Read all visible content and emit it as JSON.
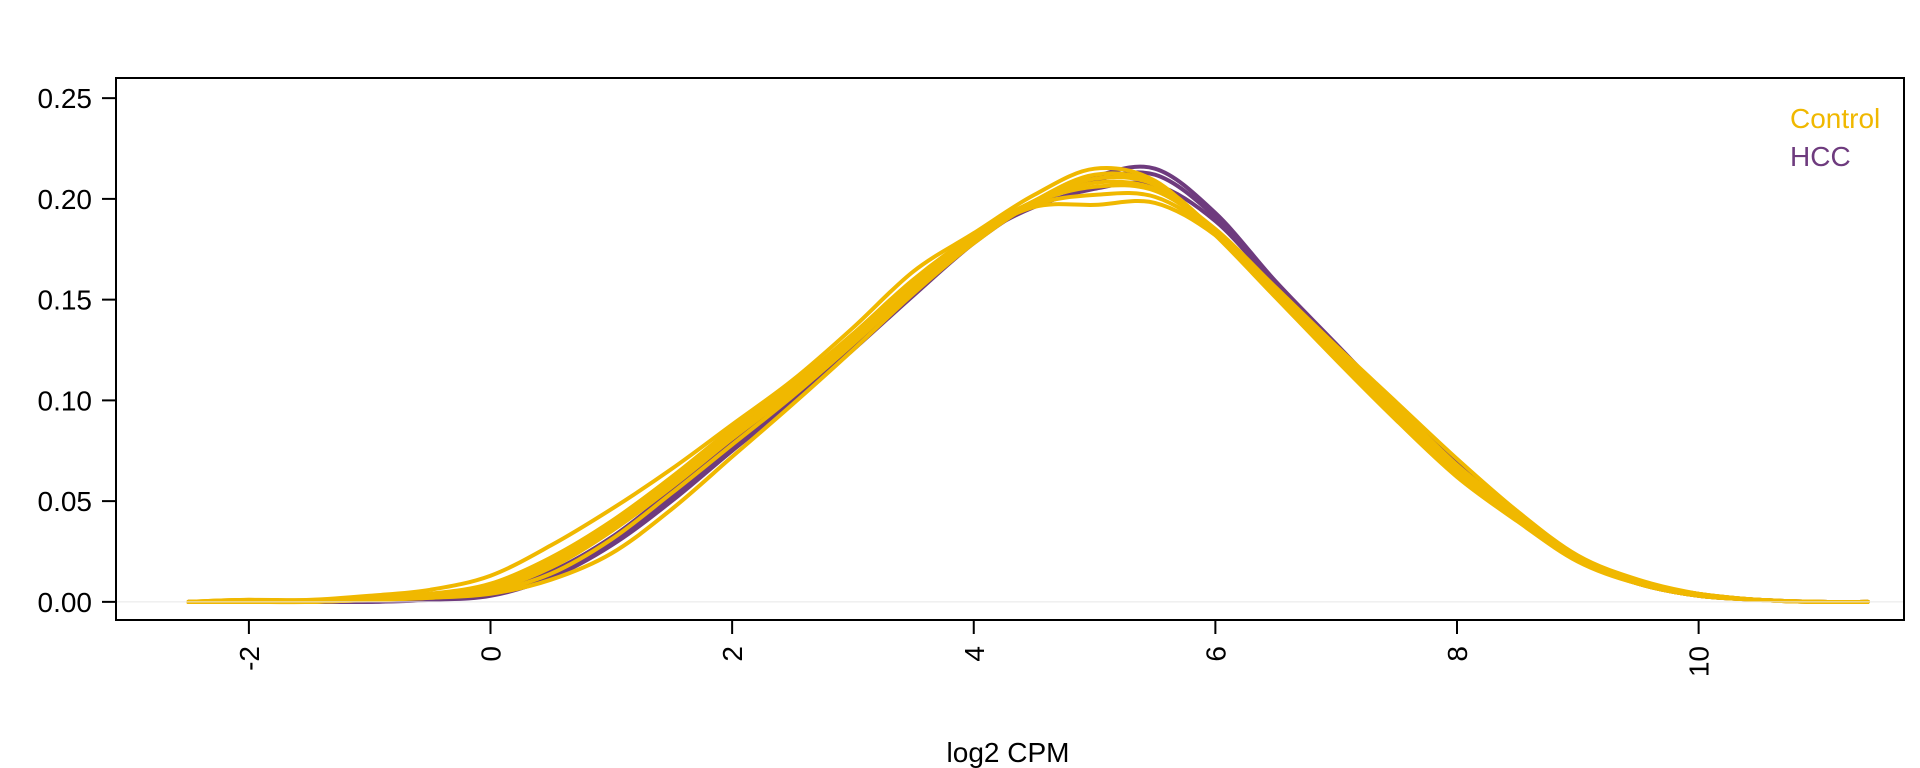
{
  "chart_data": {
    "type": "line",
    "title": "",
    "xlabel": "log2 CPM",
    "ylabel": "",
    "xlim": [
      -3.1,
      11.7
    ],
    "ylim": [
      -0.009,
      0.26
    ],
    "x_ticks": [
      "-2",
      "0",
      "2",
      "4",
      "6",
      "8",
      "10"
    ],
    "y_ticks": [
      "0.00",
      "0.05",
      "0.10",
      "0.15",
      "0.20",
      "0.25"
    ],
    "grid": false,
    "legend_position": "top-right",
    "colors": {
      "Control": "#F0B800",
      "HCC": "#6E3B7E"
    },
    "legend": [
      {
        "label": "Control",
        "color": "#F0B800"
      },
      {
        "label": "HCC",
        "color": "#6E3B7E"
      }
    ],
    "x": [
      -2.5,
      -2.0,
      -1.5,
      -1.0,
      -0.5,
      0.0,
      0.5,
      1.0,
      1.5,
      2.0,
      2.5,
      3.0,
      3.5,
      4.0,
      4.5,
      5.0,
      5.5,
      6.0,
      6.5,
      7.0,
      7.5,
      8.0,
      8.5,
      9.0,
      9.5,
      10.0,
      10.5,
      11.0,
      11.4
    ],
    "series": [
      {
        "group": "HCC",
        "values": [
          0.0,
          0.0,
          0.0,
          0.0,
          0.001,
          0.003,
          0.012,
          0.028,
          0.05,
          0.075,
          0.099,
          0.125,
          0.152,
          0.178,
          0.198,
          0.211,
          0.215,
          0.193,
          0.159,
          0.128,
          0.097,
          0.068,
          0.042,
          0.021,
          0.009,
          0.003,
          0.001,
          0.0,
          0.0
        ]
      },
      {
        "group": "HCC",
        "values": [
          0.0,
          0.0,
          0.0,
          0.001,
          0.002,
          0.005,
          0.015,
          0.032,
          0.055,
          0.079,
          0.103,
          0.129,
          0.156,
          0.18,
          0.196,
          0.205,
          0.207,
          0.189,
          0.157,
          0.127,
          0.098,
          0.069,
          0.043,
          0.022,
          0.01,
          0.004,
          0.001,
          0.0,
          0.0
        ]
      },
      {
        "group": "HCC",
        "values": [
          0.0,
          0.0,
          0.0,
          0.0,
          0.001,
          0.004,
          0.013,
          0.03,
          0.052,
          0.076,
          0.101,
          0.127,
          0.154,
          0.179,
          0.197,
          0.209,
          0.212,
          0.191,
          0.158,
          0.127,
          0.096,
          0.068,
          0.042,
          0.021,
          0.009,
          0.003,
          0.001,
          0.0,
          0.0
        ]
      },
      {
        "group": "Control",
        "values": [
          0.0,
          0.001,
          0.001,
          0.003,
          0.006,
          0.013,
          0.028,
          0.046,
          0.066,
          0.088,
          0.11,
          0.136,
          0.164,
          0.183,
          0.202,
          0.215,
          0.209,
          0.182,
          0.151,
          0.12,
          0.09,
          0.062,
          0.04,
          0.02,
          0.009,
          0.004,
          0.001,
          0.0,
          0.0
        ]
      },
      {
        "group": "Control",
        "values": [
          0.0,
          0.001,
          0.0,
          0.002,
          0.004,
          0.008,
          0.02,
          0.038,
          0.06,
          0.084,
          0.106,
          0.132,
          0.158,
          0.181,
          0.196,
          0.197,
          0.198,
          0.182,
          0.154,
          0.125,
          0.097,
          0.068,
          0.044,
          0.022,
          0.01,
          0.004,
          0.001,
          0.0,
          0.0
        ]
      },
      {
        "group": "Control",
        "values": [
          0.0,
          0.0,
          0.0,
          0.001,
          0.002,
          0.004,
          0.011,
          0.024,
          0.046,
          0.072,
          0.098,
          0.125,
          0.153,
          0.178,
          0.198,
          0.208,
          0.205,
          0.185,
          0.156,
          0.127,
          0.099,
          0.071,
          0.045,
          0.023,
          0.011,
          0.004,
          0.001,
          0.0,
          0.0
        ]
      },
      {
        "group": "Control",
        "values": [
          0.0,
          0.0,
          0.0,
          0.001,
          0.003,
          0.006,
          0.017,
          0.035,
          0.057,
          0.081,
          0.104,
          0.13,
          0.157,
          0.18,
          0.199,
          0.212,
          0.208,
          0.184,
          0.153,
          0.124,
          0.095,
          0.066,
          0.042,
          0.021,
          0.009,
          0.003,
          0.001,
          0.0,
          0.0
        ]
      },
      {
        "group": "Control",
        "values": [
          0.0,
          0.0,
          0.0,
          0.002,
          0.003,
          0.007,
          0.019,
          0.037,
          0.059,
          0.083,
          0.106,
          0.131,
          0.158,
          0.181,
          0.197,
          0.202,
          0.201,
          0.183,
          0.154,
          0.123,
          0.094,
          0.065,
          0.041,
          0.021,
          0.009,
          0.003,
          0.001,
          0.0,
          0.0
        ]
      },
      {
        "group": "Control",
        "values": [
          0.0,
          0.0,
          0.0,
          0.001,
          0.002,
          0.005,
          0.014,
          0.031,
          0.054,
          0.078,
          0.102,
          0.128,
          0.155,
          0.179,
          0.198,
          0.206,
          0.204,
          0.184,
          0.154,
          0.124,
          0.094,
          0.066,
          0.043,
          0.022,
          0.01,
          0.004,
          0.001,
          0.0,
          0.0
        ]
      },
      {
        "group": "Control",
        "values": [
          0.0,
          0.001,
          0.0,
          0.002,
          0.004,
          0.009,
          0.022,
          0.04,
          0.062,
          0.086,
          0.108,
          0.133,
          0.16,
          0.182,
          0.199,
          0.21,
          0.207,
          0.183,
          0.152,
          0.122,
          0.092,
          0.064,
          0.041,
          0.021,
          0.009,
          0.003,
          0.001,
          0.0,
          0.0
        ]
      }
    ]
  }
}
